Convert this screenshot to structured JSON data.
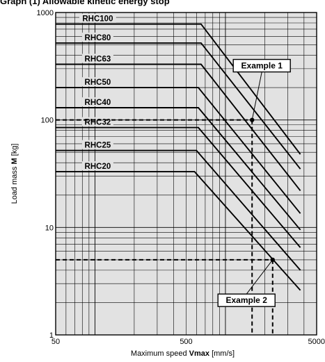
{
  "header": {
    "title": "Graph (1) Allowable kinetic energy stop"
  },
  "chart_data": {
    "type": "line",
    "x_scale": "log",
    "y_scale": "log",
    "xlim": [
      50,
      5000
    ],
    "ylim": [
      1,
      1000
    ],
    "grid": true,
    "xlabel_plain": "Maximum speed",
    "xlabel_bold": "Vmax",
    "xlabel_unit": "[mm/s]",
    "ylabel_plain": "Load mass",
    "ylabel_bold": "M",
    "ylabel_unit": "[kg]",
    "x_ticks": [
      {
        "value": 50,
        "label": "50"
      },
      {
        "value": 500,
        "label": "500"
      },
      {
        "value": 5000,
        "label": "5000"
      }
    ],
    "y_ticks": [
      {
        "value": 1,
        "label": "1"
      },
      {
        "value": 10,
        "label": "10"
      },
      {
        "value": 100,
        "label": "100"
      },
      {
        "value": 1000,
        "label": "1000"
      }
    ],
    "series": [
      {
        "name": "RHC100",
        "label_x": 105,
        "points": [
          [
            50,
            780
          ],
          [
            650,
            780
          ],
          [
            3750,
            48
          ]
        ]
      },
      {
        "name": "RHC80",
        "label_x": 105,
        "points": [
          [
            50,
            520
          ],
          [
            650,
            520
          ],
          [
            3750,
            35
          ]
        ]
      },
      {
        "name": "RHC63",
        "label_x": 105,
        "points": [
          [
            50,
            330
          ],
          [
            650,
            330
          ],
          [
            3750,
            22
          ]
        ]
      },
      {
        "name": "RHC50",
        "label_x": 105,
        "points": [
          [
            50,
            200
          ],
          [
            620,
            200
          ],
          [
            3750,
            13.5
          ]
        ]
      },
      {
        "name": "RHC40",
        "label_x": 105,
        "points": [
          [
            50,
            130
          ],
          [
            620,
            130
          ],
          [
            3750,
            9.5
          ]
        ]
      },
      {
        "name": "RHC32",
        "label_x": 105,
        "points": [
          [
            50,
            85
          ],
          [
            620,
            85
          ],
          [
            3750,
            6.5
          ]
        ]
      },
      {
        "name": "RHC25",
        "label_x": 105,
        "points": [
          [
            50,
            52
          ],
          [
            600,
            52
          ],
          [
            3750,
            4
          ]
        ]
      },
      {
        "name": "RHC20",
        "label_x": 105,
        "points": [
          [
            50,
            33
          ],
          [
            580,
            33
          ],
          [
            3750,
            2.6
          ]
        ]
      }
    ],
    "annotations": [
      {
        "label": "Example 1",
        "point": [
          1600,
          100
        ],
        "label_at": [
          1900,
          320
        ]
      },
      {
        "label": "Example 2",
        "point": [
          2300,
          5
        ],
        "label_at": [
          1450,
          2.1
        ]
      }
    ]
  }
}
